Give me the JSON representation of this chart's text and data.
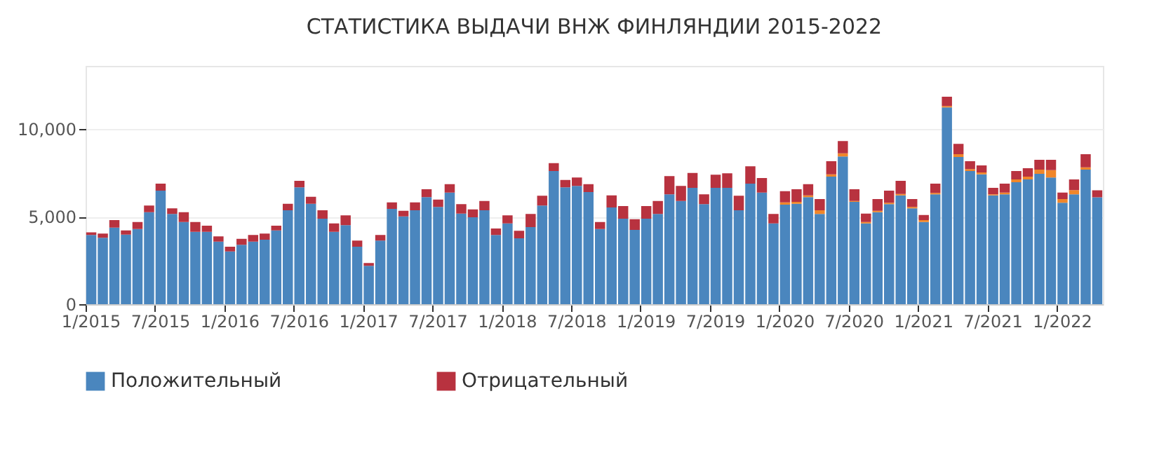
{
  "chart_data": {
    "type": "bar",
    "title": "СТАТИСТИКА ВЫДАЧИ ВНЖ ФИНЛЯНДИИ 2015-2022",
    "stacked": true,
    "grid": "y",
    "legend": "bottom",
    "categories": [
      "1/2015",
      null,
      null,
      null,
      null,
      null,
      "7/2015",
      null,
      null,
      null,
      null,
      null,
      "1/2016",
      null,
      null,
      null,
      null,
      null,
      "7/2016",
      null,
      null,
      null,
      null,
      null,
      "1/2017",
      null,
      null,
      null,
      null,
      null,
      "7/2017",
      null,
      null,
      null,
      null,
      null,
      "1/2018",
      null,
      null,
      null,
      null,
      null,
      "7/2018",
      null,
      null,
      null,
      null,
      null,
      "1/2019",
      null,
      null,
      null,
      null,
      null,
      "7/2019",
      null,
      null,
      null,
      null,
      null,
      "1/2020",
      null,
      null,
      null,
      null,
      null,
      "7/2020",
      null,
      null,
      null,
      null,
      null,
      "1/2021",
      null,
      null,
      null,
      null,
      null,
      "7/2021",
      null,
      null,
      null,
      null,
      null,
      "1/2022",
      null,
      null,
      null
    ],
    "ylim": [
      0,
      13600
    ],
    "yticks": [
      0,
      {
        "value": 5000,
        "label": "5,000"
      },
      {
        "value": 10000,
        "label": "10,000"
      }
    ],
    "series": [
      {
        "name": "Положительный",
        "color": "#4a86be",
        "values": [
          3950,
          3790,
          4370,
          3970,
          4290,
          5250,
          6480,
          5150,
          4690,
          4130,
          4130,
          3570,
          3010,
          3390,
          3570,
          3680,
          4210,
          5360,
          6670,
          5730,
          4880,
          4130,
          4510,
          3280,
          2190,
          3630,
          5440,
          5010,
          5360,
          6110,
          5550,
          6370,
          5170,
          4960,
          5360,
          3950,
          4610,
          3760,
          4400,
          5630,
          7600,
          6670,
          6750,
          6400,
          4290,
          5520,
          4880,
          4240,
          4880,
          5150,
          6270,
          5890,
          6640,
          5710,
          6640,
          6640,
          5360,
          6880,
          6370,
          4610,
          5680,
          5730,
          6110,
          5150,
          7280,
          8430,
          5840,
          4610,
          5250,
          5710,
          6210,
          5470,
          4690,
          6270,
          11230,
          8400,
          7600,
          7410,
          6210,
          6270,
          6960,
          7120,
          7440,
          7230,
          5790,
          6270,
          7680,
          6100
        ]
      },
      {
        "color": "#f0862a",
        "values": [
          null,
          null,
          null,
          null,
          null,
          null,
          null,
          null,
          null,
          null,
          null,
          null,
          null,
          null,
          null,
          null,
          null,
          null,
          null,
          null,
          null,
          null,
          null,
          null,
          null,
          null,
          null,
          null,
          null,
          null,
          null,
          null,
          null,
          null,
          null,
          null,
          null,
          null,
          null,
          null,
          null,
          null,
          null,
          null,
          null,
          null,
          null,
          null,
          null,
          null,
          null,
          null,
          null,
          null,
          null,
          null,
          null,
          null,
          null,
          null,
          130,
          110,
          100,
          210,
          130,
          180,
          50,
          80,
          80,
          80,
          80,
          80,
          110,
          80,
          80,
          160,
          110,
          110,
          60,
          100,
          160,
          160,
          240,
          420,
          210,
          240,
          130,
          null
        ]
      },
      {
        "name": "Отрицательный",
        "color": "#b8323f",
        "values": [
          150,
          240,
          430,
          240,
          400,
          380,
          400,
          320,
          560,
          560,
          350,
          300,
          270,
          340,
          380,
          350,
          270,
          370,
          370,
          400,
          480,
          480,
          560,
          350,
          160,
          320,
          370,
          320,
          450,
          450,
          420,
          480,
          540,
          450,
          530,
          370,
          460,
          430,
          750,
          560,
          450,
          420,
          480,
          450,
          400,
          690,
          720,
          610,
          720,
          740,
          1040,
          860,
          850,
          560,
          750,
          830,
          830,
          990,
          830,
          540,
          640,
          720,
          640,
          640,
          750,
          700,
          670,
          480,
          670,
          690,
          750,
          450,
          290,
          530,
          530,
          590,
          450,
          400,
          370,
          510,
          480,
          480,
          560,
          590,
          370,
          610,
          750,
          400
        ]
      }
    ]
  }
}
